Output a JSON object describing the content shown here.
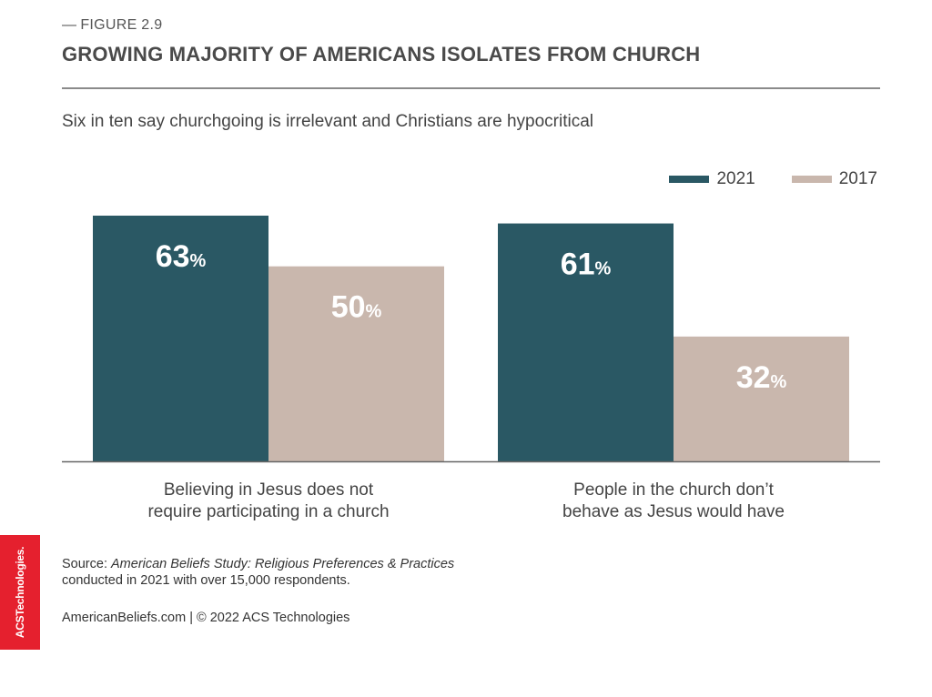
{
  "figure": {
    "dash": "—",
    "label": "FIGURE 2.9"
  },
  "title": "GROWING MAJORITY OF AMERICANS ISOLATES FROM CHURCH",
  "subtitle": "Six in ten say churchgoing is irrelevant and Christians are hypocritical",
  "colors": {
    "series_2021": "#2a5864",
    "series_2017": "#c9b7ad",
    "axis": "#666666",
    "logo": "#e5202e"
  },
  "chart_data": {
    "type": "bar",
    "categories": [
      "Believing in Jesus does not require participating in a church",
      "People in the church don’t behave as Jesus would have"
    ],
    "category_lines": [
      [
        "Believing in Jesus does not",
        "require participating in a church"
      ],
      [
        "People in the church don’t",
        "behave as Jesus would have"
      ]
    ],
    "series": [
      {
        "name": "2021",
        "values": [
          63,
          61
        ],
        "color": "#2a5864"
      },
      {
        "name": "2017",
        "values": [
          50,
          32
        ],
        "color": "#c9b7ad"
      }
    ],
    "unit": "%",
    "ylim": [
      0,
      63
    ],
    "legend": "top-right",
    "grid": false
  },
  "source": {
    "prefix": "Source: ",
    "study": "American Beliefs Study: Religious Preferences & Practices",
    "line2": "conducted in 2021 with over 15,000 respondents."
  },
  "footer": "AmericanBeliefs.com | © 2022 ACS Technologies",
  "logo_text": "ACSTechnologies."
}
